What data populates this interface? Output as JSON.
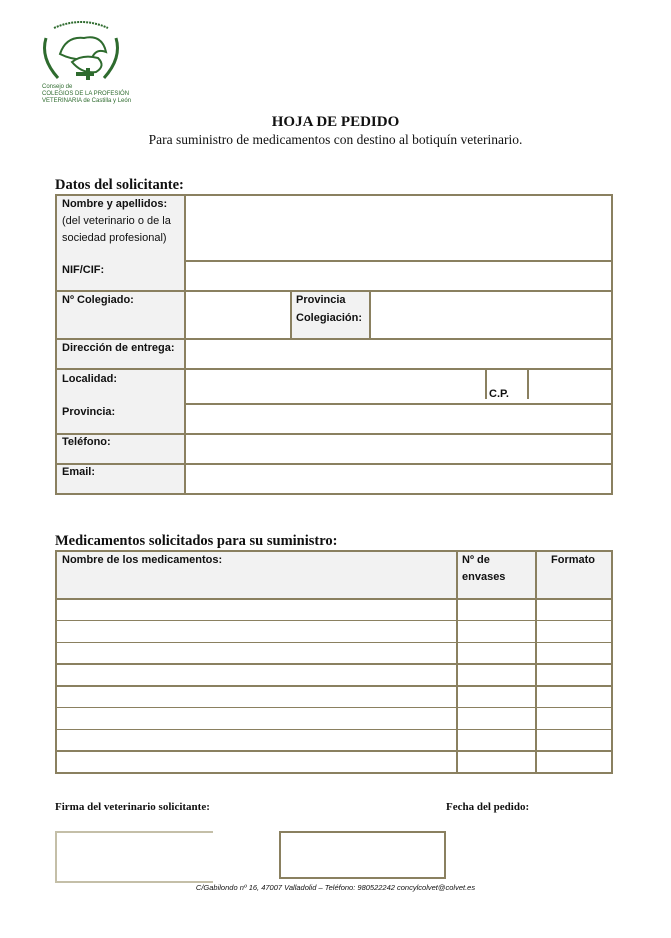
{
  "logo": {
    "motto": "MEDICUS PECORIS SALVS POPULI",
    "text_line1": "Consejo de",
    "text_line2": "COLEGIOS DE LA PROFESIÓN",
    "text_line3": "VETERINARIA de Castilla y León",
    "color": "#2e6b2e"
  },
  "header": {
    "title": "HOJA DE PEDIDO",
    "subtitle": "Para suministro de medicamentos con destino al botiquín veterinario."
  },
  "solicitante": {
    "heading": "Datos del solicitante:",
    "nombre_1": "Nombre y apellidos:",
    "nombre_2": "(del veterinario o de la",
    "nombre_3": "sociedad profesional)",
    "nif": "NIF/CIF:",
    "colegiado": "Nº Colegiado:",
    "provincia_col_1": "Provincia",
    "provincia_col_2": "Colegiación:",
    "direccion": "Dirección de entrega:",
    "localidad": "Localidad:",
    "cp": "C.P.",
    "provincia": "Provincia:",
    "telefono": "Teléfono:",
    "email": "Email:"
  },
  "medicamentos": {
    "heading": "Medicamentos solicitados para su suministro:",
    "col_nombre": "Nombre de los medicamentos:",
    "col_envases_1": "Nº de",
    "col_envases_2": "envases",
    "col_formato": "Formato",
    "rows": 8
  },
  "firma": {
    "label": "Firma del veterinario solicitante:",
    "fecha": "Fecha del pedido:"
  },
  "footer": {
    "text": "C/Gabilondo nº 16,  47007 Valladolid – Teléfono: 980522242 concylcolvet@colvet.es"
  },
  "colors": {
    "border": "#8a8060",
    "label_bg": "#f2f2f2"
  }
}
